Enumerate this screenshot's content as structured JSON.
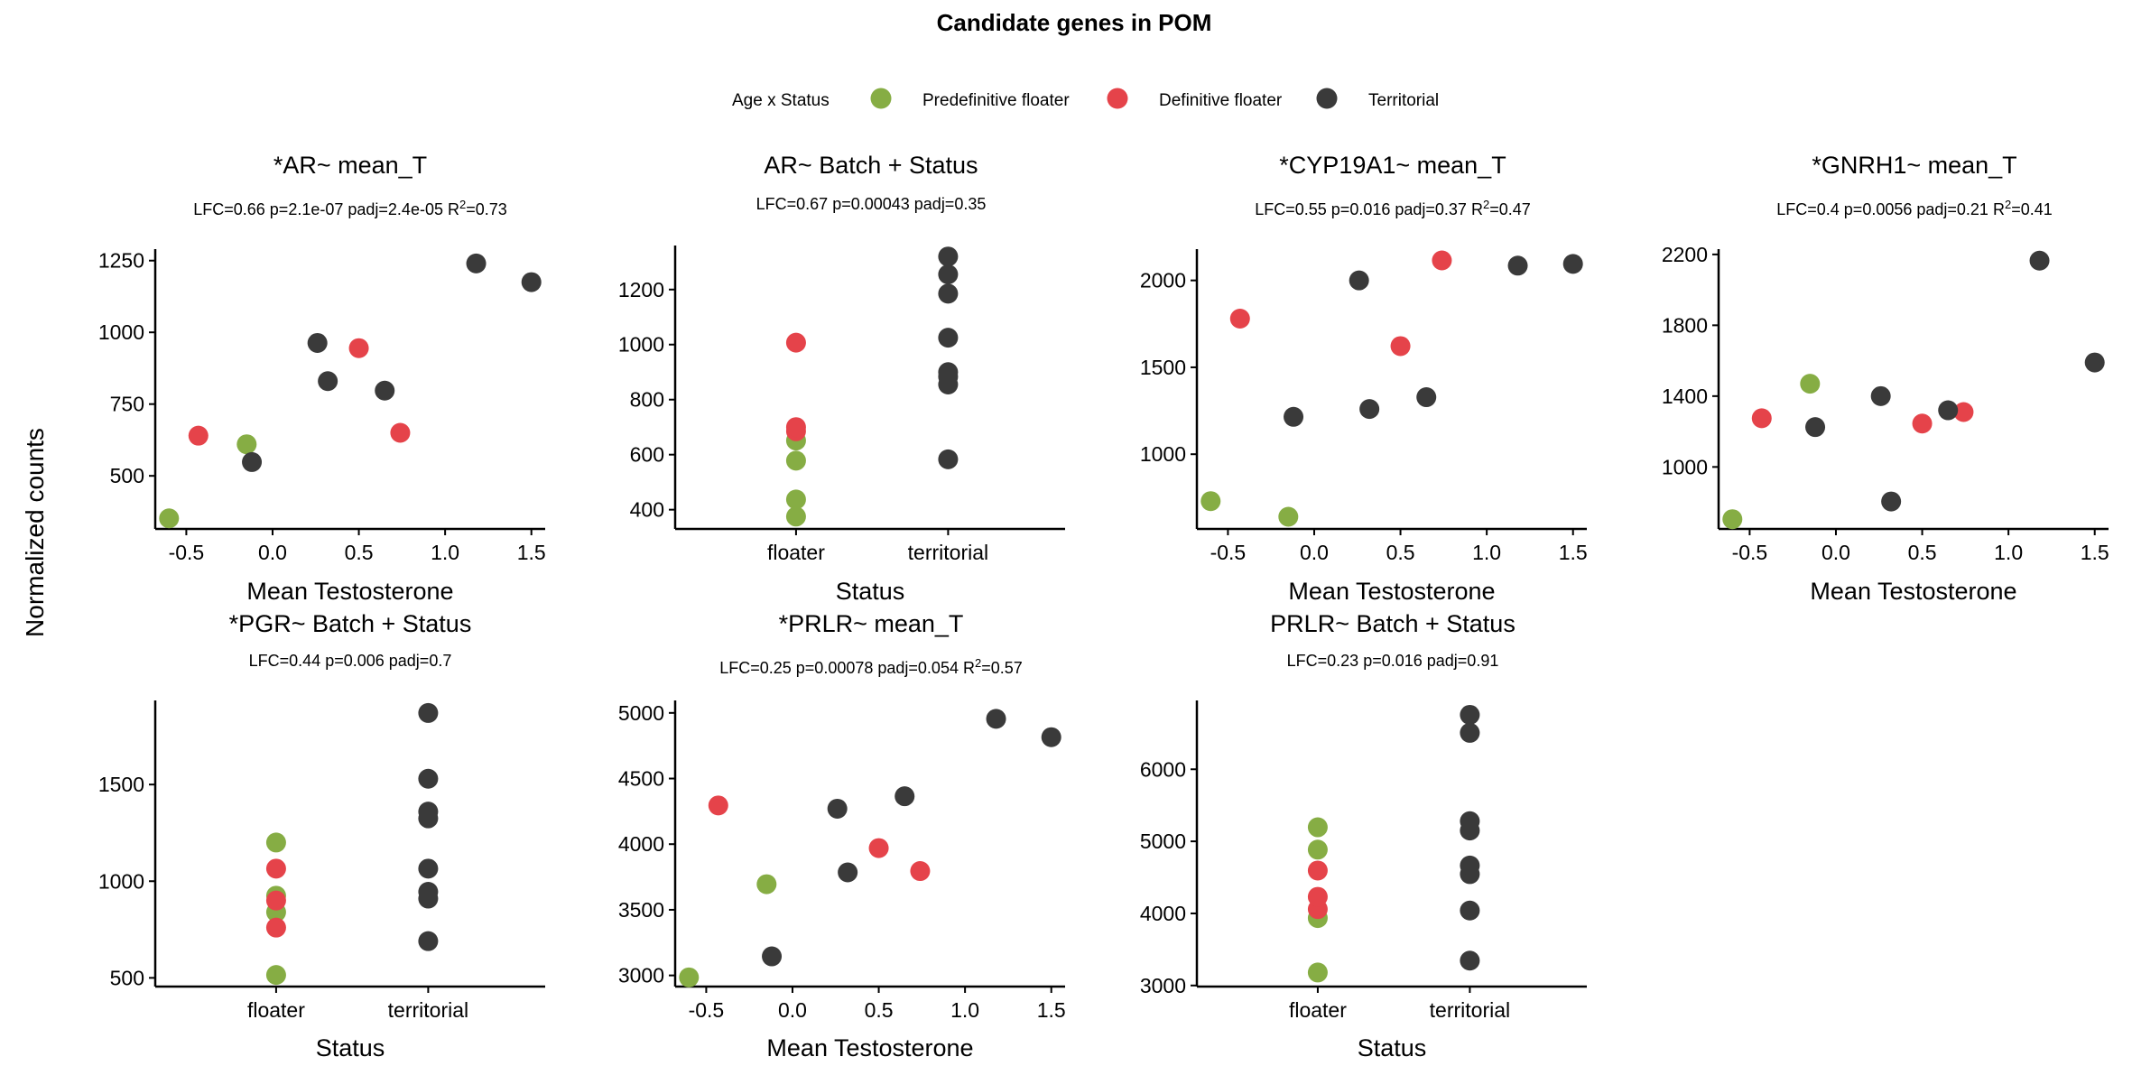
{
  "figure": {
    "title": "Candidate genes in POM",
    "ylabel": "Normalized counts"
  },
  "legend": {
    "title": "Age x Status",
    "items": [
      {
        "label": "Predefinitive floater",
        "color": "#86ad44"
      },
      {
        "label": "Definitive floater",
        "color": "#e5434a"
      },
      {
        "label": "Territorial",
        "color": "#3a3a3a"
      }
    ]
  },
  "colors": {
    "predefinitive": "#86ad44",
    "definitive": "#e5434a",
    "territorial": "#3a3a3a",
    "axis": "#000000"
  },
  "chart_data": [
    {
      "type": "scatter",
      "title": "*AR~ mean_T",
      "stats": {
        "pre": "LFC=0.66 p=2.1e-07 padj=2.4e-05 R",
        "sup": "2",
        "post": "=0.73"
      },
      "xlabel": "Mean Testosterone",
      "xlim": [
        -0.68,
        1.58
      ],
      "ylim": [
        315,
        1290
      ],
      "xticks": [
        "-0.5",
        "0.0",
        "0.5",
        "1.0",
        "1.5"
      ],
      "yticks": [
        "500",
        "750",
        "1000",
        "1250"
      ],
      "series": [
        {
          "name": "Predefinitive floater",
          "points": [
            [
              -0.6,
              352
            ],
            [
              -0.15,
              610
            ]
          ]
        },
        {
          "name": "Definitive floater",
          "points": [
            [
              -0.43,
              640
            ],
            [
              0.5,
              945
            ],
            [
              0.74,
              650
            ]
          ]
        },
        {
          "name": "Territorial",
          "points": [
            [
              -0.12,
              548
            ],
            [
              0.26,
              963
            ],
            [
              0.32,
              830
            ],
            [
              0.65,
              797
            ],
            [
              1.18,
              1240
            ],
            [
              1.5,
              1175
            ]
          ]
        }
      ]
    },
    {
      "type": "scatter",
      "title": "AR~ Batch + Status",
      "stats": {
        "pre": "LFC=0.67 p=0.00043 padj=0.35",
        "sup": "",
        "post": ""
      },
      "xlabel": "Status",
      "categories": [
        "floater",
        "territorial"
      ],
      "ylim": [
        330,
        1360
      ],
      "yticks": [
        "400",
        "600",
        "800",
        "1000",
        "1200"
      ],
      "series": [
        {
          "name": "Predefinitive floater",
          "points": [
            [
              "floater",
              375
            ],
            [
              "floater",
              437
            ],
            [
              "floater",
              578
            ],
            [
              "floater",
              651
            ]
          ]
        },
        {
          "name": "Definitive floater",
          "points": [
            [
              "floater",
              685
            ],
            [
              "floater",
              700
            ],
            [
              "floater",
              1007
            ]
          ]
        },
        {
          "name": "Territorial",
          "points": [
            [
              "territorial",
              583
            ],
            [
              "territorial",
              855
            ],
            [
              "territorial",
              883
            ],
            [
              "territorial",
              900
            ],
            [
              "territorial",
              1025
            ],
            [
              "territorial",
              1185
            ],
            [
              "territorial",
              1255
            ],
            [
              "territorial",
              1320
            ]
          ]
        }
      ]
    },
    {
      "type": "scatter",
      "title": "*CYP19A1~ mean_T",
      "stats": {
        "pre": "LFC=0.55 p=0.016 padj=0.37 R",
        "sup": "2",
        "post": "=0.47"
      },
      "xlabel": "Mean Testosterone",
      "xlim": [
        -0.68,
        1.58
      ],
      "ylim": [
        570,
        2180
      ],
      "xticks": [
        "-0.5",
        "0.0",
        "0.5",
        "1.0",
        "1.5"
      ],
      "yticks": [
        "1000",
        "1500",
        "2000"
      ],
      "series": [
        {
          "name": "Predefinitive floater",
          "points": [
            [
              -0.6,
              730
            ],
            [
              -0.15,
              640
            ]
          ]
        },
        {
          "name": "Definitive floater",
          "points": [
            [
              -0.43,
              1780
            ],
            [
              0.5,
              1622
            ],
            [
              0.74,
              2115
            ]
          ]
        },
        {
          "name": "Territorial",
          "points": [
            [
              -0.12,
              1215
            ],
            [
              0.26,
              2000
            ],
            [
              0.32,
              1260
            ],
            [
              0.65,
              1328
            ],
            [
              1.18,
              2085
            ],
            [
              1.5,
              2095
            ]
          ]
        }
      ]
    },
    {
      "type": "scatter",
      "title": "*GNRH1~ mean_T",
      "stats": {
        "pre": "LFC=0.4 p=0.0056 padj=0.21 R",
        "sup": "2",
        "post": "=0.41"
      },
      "xlabel": "Mean Testosterone",
      "xlim": [
        -0.68,
        1.58
      ],
      "ylim": [
        650,
        2230
      ],
      "xticks": [
        "-0.5",
        "0.0",
        "0.5",
        "1.0",
        "1.5"
      ],
      "yticks": [
        "1000",
        "1400",
        "1800",
        "2200"
      ],
      "series": [
        {
          "name": "Predefinitive floater",
          "points": [
            [
              -0.6,
              705
            ],
            [
              -0.15,
              1470
            ]
          ]
        },
        {
          "name": "Definitive floater",
          "points": [
            [
              -0.43,
              1275
            ],
            [
              0.5,
              1245
            ],
            [
              0.74,
              1310
            ]
          ]
        },
        {
          "name": "Territorial",
          "points": [
            [
              -0.12,
              1225
            ],
            [
              0.26,
              1400
            ],
            [
              0.32,
              805
            ],
            [
              0.65,
              1320
            ],
            [
              1.18,
              2165
            ],
            [
              1.5,
              1590
            ]
          ]
        }
      ]
    },
    {
      "type": "scatter",
      "title": "*PGR~ Batch + Status",
      "stats": {
        "pre": "LFC=0.44 p=0.006 padj=0.7",
        "sup": "",
        "post": ""
      },
      "xlabel": "Status",
      "categories": [
        "floater",
        "territorial"
      ],
      "ylim": [
        455,
        1935
      ],
      "yticks": [
        "500",
        "1000",
        "1500"
      ],
      "series": [
        {
          "name": "Predefinitive floater",
          "points": [
            [
              "floater",
              515
            ],
            [
              "floater",
              840
            ],
            [
              "floater",
              925
            ],
            [
              "floater",
              1200
            ]
          ]
        },
        {
          "name": "Definitive floater",
          "points": [
            [
              "floater",
              760
            ],
            [
              "floater",
              900
            ],
            [
              "floater",
              1065
            ]
          ]
        },
        {
          "name": "Territorial",
          "points": [
            [
              "territorial",
              690
            ],
            [
              "territorial",
              910
            ],
            [
              "territorial",
              945
            ],
            [
              "territorial",
              1065
            ],
            [
              "territorial",
              1325
            ],
            [
              "territorial",
              1360
            ],
            [
              "territorial",
              1530
            ],
            [
              "territorial",
              1870
            ]
          ]
        }
      ]
    },
    {
      "type": "scatter",
      "title": "*PRLR~ mean_T",
      "stats": {
        "pre": "LFC=0.25 p=0.00078 padj=0.054 R",
        "sup": "2",
        "post": "=0.57"
      },
      "xlabel": "Mean Testosterone",
      "xlim": [
        -0.68,
        1.58
      ],
      "ylim": [
        2915,
        5095
      ],
      "xticks": [
        "-0.5",
        "0.0",
        "0.5",
        "1.0",
        "1.5"
      ],
      "yticks": [
        "3000",
        "3500",
        "4000",
        "4500",
        "5000"
      ],
      "series": [
        {
          "name": "Predefinitive floater",
          "points": [
            [
              -0.6,
              2985
            ],
            [
              -0.15,
              3695
            ]
          ]
        },
        {
          "name": "Definitive floater",
          "points": [
            [
              -0.43,
              4295
            ],
            [
              0.5,
              3970
            ],
            [
              0.74,
              3795
            ]
          ]
        },
        {
          "name": "Territorial",
          "points": [
            [
              -0.12,
              3145
            ],
            [
              0.26,
              4270
            ],
            [
              0.32,
              3785
            ],
            [
              0.65,
              4365
            ],
            [
              1.18,
              4955
            ],
            [
              1.5,
              4815
            ]
          ]
        }
      ]
    },
    {
      "type": "scatter",
      "title": "PRLR~ Batch + Status",
      "stats": {
        "pre": "LFC=0.23 p=0.016 padj=0.91",
        "sup": "",
        "post": ""
      },
      "xlabel": "Status",
      "categories": [
        "floater",
        "territorial"
      ],
      "ylim": [
        2985,
        6955
      ],
      "yticks": [
        "3000",
        "4000",
        "5000",
        "6000"
      ],
      "series": [
        {
          "name": "Predefinitive floater",
          "points": [
            [
              "floater",
              3180
            ],
            [
              "floater",
              3935
            ],
            [
              "floater",
              4885
            ],
            [
              "floater",
              5195
            ]
          ]
        },
        {
          "name": "Definitive floater",
          "points": [
            [
              "floater",
              4060
            ],
            [
              "floater",
              4230
            ],
            [
              "floater",
              4595
            ]
          ]
        },
        {
          "name": "Territorial",
          "points": [
            [
              "territorial",
              3345
            ],
            [
              "territorial",
              4040
            ],
            [
              "territorial",
              4545
            ],
            [
              "territorial",
              4665
            ],
            [
              "territorial",
              5150
            ],
            [
              "territorial",
              5280
            ],
            [
              "territorial",
              6505
            ],
            [
              "territorial",
              6755
            ]
          ]
        }
      ]
    }
  ]
}
